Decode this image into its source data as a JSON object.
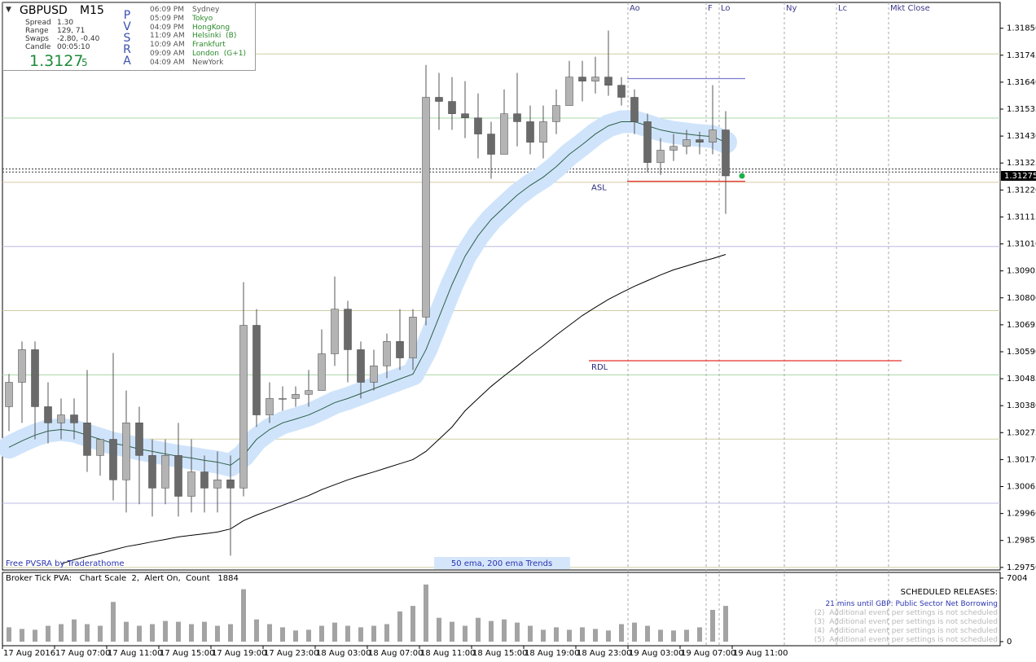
{
  "chart_data": [
    {
      "type": "candlestick",
      "categories": [
        "17 Aug 2016",
        null,
        null,
        null,
        "17 Aug 07:00",
        null,
        null,
        null,
        "17 Aug 11:00",
        null,
        null,
        null,
        "17 Aug 15:00",
        null,
        null,
        null,
        "17 Aug 19:00",
        null,
        null,
        null,
        "17 Aug 23:00",
        null,
        null,
        null,
        "18 Aug 03:00",
        null,
        null,
        null,
        "18 Aug 07:00",
        null,
        null,
        null,
        "18 Aug 11:00",
        null,
        null,
        null,
        "18 Aug 15:00",
        null,
        null,
        null,
        "18 Aug 19:00",
        null,
        null,
        null,
        "18 Aug 23:00",
        null,
        null,
        null,
        "19 Aug 03:00",
        null,
        null,
        null,
        "19 Aug 07:00",
        null,
        null,
        null,
        "19 Aug 11:00"
      ],
      "open": [
        1.30376,
        1.30471,
        1.30598,
        1.30376,
        1.30313,
        1.30344,
        1.30313,
        1.30186,
        1.30249,
        1.30091,
        1.30313,
        1.30186,
        1.30059,
        1.30186,
        1.30027,
        1.30122,
        1.30059,
        1.30091,
        1.30059,
        1.30693,
        1.30344,
        1.30408,
        1.30408,
        1.30424,
        1.30439,
        1.30582,
        1.30756,
        1.30598,
        1.30471,
        1.30535,
        1.3063,
        1.30566,
        1.30725,
        1.31581,
        1.31565,
        1.31517,
        1.31501,
        1.31438,
        1.31359,
        1.31517,
        1.31486,
        1.31406,
        1.31486,
        1.31549,
        1.3166,
        1.31644,
        1.3166,
        1.31628,
        1.31581,
        1.31486,
        1.31327,
        1.31375,
        1.3139,
        1.31416,
        1.31406,
        1.31454,
        null
      ],
      "high": [
        1.30503,
        1.3063,
        1.3063,
        1.30471,
        1.30408,
        1.30408,
        1.30519,
        1.30249,
        1.30585,
        1.30439,
        1.30376,
        1.30249,
        1.30249,
        1.30313,
        1.30249,
        1.30186,
        1.30202,
        1.30186,
        1.30861,
        1.30756,
        1.30471,
        1.30455,
        1.30455,
        1.30519,
        1.30677,
        1.30883,
        1.30788,
        1.3063,
        1.30598,
        1.30661,
        1.30756,
        1.30756,
        1.31707,
        1.31676,
        1.3166,
        1.31644,
        1.31596,
        1.31486,
        1.31612,
        1.31676,
        1.31549,
        1.31549,
        1.31612,
        1.31723,
        1.31723,
        1.31739,
        1.31841,
        1.3166,
        1.31612,
        1.31517,
        1.31422,
        1.31438,
        1.31454,
        1.31447,
        1.31628,
        1.31527,
        null
      ],
      "low": [
        1.30281,
        1.30313,
        1.30249,
        1.30233,
        1.30249,
        1.30249,
        1.30122,
        1.30107,
        1.30011,
        1.29964,
        1.29996,
        1.29948,
        1.29996,
        1.29948,
        1.29964,
        1.29964,
        1.29964,
        1.29796,
        1.30027,
        1.30297,
        1.30313,
        1.3036,
        1.30376,
        1.30376,
        1.30439,
        1.30535,
        1.30471,
        1.30408,
        1.30439,
        1.30487,
        1.30519,
        1.30519,
        1.30693,
        1.31454,
        1.31454,
        1.31422,
        1.31343,
        1.31264,
        1.31359,
        1.3139,
        1.31359,
        1.31343,
        1.31438,
        1.31549,
        1.31565,
        1.31596,
        1.31587,
        1.31549,
        1.31438,
        1.31289,
        1.31279,
        1.31333,
        1.31359,
        1.31359,
        1.31359,
        1.31127,
        null
      ],
      "close": [
        1.30471,
        1.30598,
        1.30376,
        1.30313,
        1.30344,
        1.30313,
        1.30186,
        1.30249,
        1.30091,
        1.30313,
        1.30186,
        1.30059,
        1.30186,
        1.30027,
        1.30122,
        1.30059,
        1.30091,
        1.30059,
        1.30693,
        1.30344,
        1.30408,
        1.30408,
        1.30424,
        1.30439,
        1.30582,
        1.30756,
        1.30598,
        1.30471,
        1.30535,
        1.3063,
        1.30566,
        1.30725,
        1.31581,
        1.31565,
        1.31517,
        1.31501,
        1.31438,
        1.31359,
        1.31517,
        1.31486,
        1.31406,
        1.31486,
        1.31549,
        1.3166,
        1.31644,
        1.3166,
        1.31628,
        1.31581,
        1.31486,
        1.31327,
        1.31375,
        1.3139,
        1.31416,
        1.31406,
        1.31454,
        1.31275,
        null
      ],
      "up_color": "#b4b4b4",
      "down_color": "#6a6a6a",
      "wick_color": "#555555",
      "overlays": [
        {
          "color": "#2f5f47",
          "band_color": "#cfe4fb",
          "values": [
            1.30218,
            1.30243,
            1.30265,
            1.30281,
            1.30287,
            1.30281,
            1.30265,
            1.30249,
            1.30233,
            1.30224,
            1.30211,
            1.30202,
            1.30192,
            1.30183,
            1.30176,
            1.30167,
            1.3016,
            1.30148,
            1.30186,
            1.30249,
            1.30287,
            1.30313,
            1.30328,
            1.30344,
            1.30367,
            1.30392,
            1.30408,
            1.30427,
            1.30446,
            1.30465,
            1.30484,
            1.30503,
            1.30598,
            1.30725,
            1.30852,
            1.30962,
            1.31042,
            1.31105,
            1.31153,
            1.312,
            1.31238,
            1.3127,
            1.31311,
            1.31359,
            1.31397,
            1.31438,
            1.3147,
            1.31486,
            1.31486,
            1.3147,
            1.31454,
            1.31444,
            1.31438,
            1.31432,
            1.31428,
            1.31406,
            null
          ]
        },
        {
          "color": "#000000",
          "values": [
            null,
            null,
            null,
            null,
            1.29764,
            1.2978,
            1.29793,
            1.29805,
            1.29818,
            1.29831,
            1.2984,
            1.2985,
            1.29859,
            1.29869,
            1.29875,
            1.29881,
            1.29888,
            1.299,
            1.29932,
            1.29954,
            1.29973,
            1.29992,
            1.30011,
            1.3003,
            1.30053,
            1.30072,
            1.30091,
            1.30107,
            1.30122,
            1.30138,
            1.30154,
            1.3017,
            1.30202,
            1.30249,
            1.30297,
            1.3036,
            1.30408,
            1.30455,
            1.30496,
            1.30535,
            1.30576,
            1.30614,
            1.30655,
            1.30693,
            1.30731,
            1.30763,
            1.30794,
            1.3082,
            1.30845,
            1.30867,
            1.30889,
            1.30909,
            1.30924,
            1.3094,
            1.30953,
            1.30969,
            null
          ]
        }
      ],
      "ylim": [
        1.2974,
        1.3196
      ],
      "yticks": [
        {
          "value": 1.2975,
          "label": "1.29750"
        },
        {
          "value": 1.29855,
          "label": "1.29855"
        },
        {
          "value": 1.2996,
          "label": "1.29960"
        },
        {
          "value": 1.30065,
          "label": "1.30065"
        },
        {
          "value": 1.3017,
          "label": "1.30170"
        },
        {
          "value": 1.30275,
          "label": "1.30275"
        },
        {
          "value": 1.3038,
          "label": "1.30380"
        },
        {
          "value": 1.30485,
          "label": "1.30485"
        },
        {
          "value": 1.3059,
          "label": "1.30590"
        },
        {
          "value": 1.30695,
          "label": "1.30695"
        },
        {
          "value": 1.308,
          "label": "1.30800"
        },
        {
          "value": 1.30905,
          "label": "1.30905"
        },
        {
          "value": 1.3101,
          "label": "1.31010"
        },
        {
          "value": 1.31115,
          "label": "1.31115"
        },
        {
          "value": 1.3122,
          "label": "1.31220"
        },
        {
          "value": 1.31325,
          "label": "1.31325"
        },
        {
          "value": 1.3143,
          "label": "1.31430"
        },
        {
          "value": 1.31535,
          "label": "1.31535"
        },
        {
          "value": 1.3164,
          "label": "1.31640"
        },
        {
          "value": 1.31745,
          "label": "1.31745"
        },
        {
          "value": 1.3185,
          "label": "1.31850"
        }
      ],
      "reference_lines": [
        {
          "value": 1.3175,
          "color": "#cdcda4"
        },
        {
          "value": 1.315,
          "color": "#a8d8a8"
        },
        {
          "value": 1.3125,
          "color": "#d9c9a6"
        },
        {
          "value": 1.31,
          "color": "#bcbce6"
        },
        {
          "value": 1.3075,
          "color": "#cdcda4"
        },
        {
          "value": 1.305,
          "color": "#a8d8a8"
        },
        {
          "value": 1.3025,
          "color": "#cdcda4"
        },
        {
          "value": 1.3,
          "color": "#bcbce6"
        },
        {
          "value": 1.2975,
          "color": "#cdcda4"
        },
        {
          "value": 1.3129,
          "color": "#333333",
          "dashed": true
        },
        {
          "value": 1.31302,
          "color": "#333333",
          "dashed": true
        }
      ],
      "key_levels": [
        {
          "label": "ASL",
          "value": 1.31254,
          "color": "#e8322f"
        },
        {
          "label": "RDL",
          "value": 1.30555,
          "color": "#e8322f"
        },
        {
          "value": 1.31654,
          "color": "#7c7cd0"
        }
      ],
      "session_markers": [
        "Ao",
        "F",
        "Lo",
        "Ny",
        "Lc",
        "Mkt Close"
      ],
      "notes": [
        "Free PVSRA by Traderathome",
        "50 ema, 200 ema Trends"
      ]
    },
    {
      "type": "bar",
      "title": "Broker Tick PVA:   Chart Scale  2,  Alert On,  Count   1884",
      "color": "#a3a3a3",
      "values": [
        1580,
        1400,
        1310,
        1750,
        1930,
        2450,
        1930,
        1750,
        4380,
        2190,
        1750,
        1930,
        2280,
        2190,
        1930,
        2190,
        1750,
        1930,
        5780,
        2450,
        1930,
        1580,
        1230,
        1310,
        1750,
        2100,
        1750,
        1580,
        1750,
        1930,
        3330,
        3940,
        6300,
        2630,
        2190,
        1750,
        2630,
        2280,
        2450,
        2100,
        1750,
        1310,
        1580,
        1310,
        1580,
        1400,
        1230,
        1930,
        2100,
        1750,
        1310,
        1230,
        1310,
        1580,
        3500,
        3940,
        null
      ],
      "ylim": [
        0,
        7004
      ],
      "yticks": [
        0,
        7004
      ]
    }
  ],
  "info_panel": {
    "symbol": "GBPUSD",
    "timeframe": "M15",
    "stats": [
      {
        "label": "Spread",
        "value": "1.30"
      },
      {
        "label": "Range",
        "value": "129, 71"
      },
      {
        "label": "Swaps",
        "value": "-2.80, -0.40"
      },
      {
        "label": "Candle",
        "value": "00:05:10"
      }
    ],
    "price": "1.3127",
    "price_tail": "5",
    "indicator": "PVSRA",
    "sessions": [
      {
        "time": "06:09 PM",
        "name": "Sydney",
        "color": "#555555"
      },
      {
        "time": "05:09 PM",
        "name": "Tokyo",
        "color": "#2a8a2a"
      },
      {
        "time": "04:09 PM",
        "name": "HongKong",
        "color": "#2a8a2a"
      },
      {
        "time": "11:09 AM",
        "name": "Helsinki  (B)",
        "color": "#2a8a2a"
      },
      {
        "time": "10:09 AM",
        "name": "Frankfurt",
        "color": "#2a8a2a"
      },
      {
        "time": "09:09 AM",
        "name": "London  (G+1)",
        "color": "#2a8a2a"
      },
      {
        "time": "04:09 AM",
        "name": "NewYork",
        "color": "#555555"
      }
    ]
  },
  "releases": {
    "title": "SCHEDULED RELEASES:",
    "next": "21 mins until GBP: Public Sector Net Borrowing",
    "pending": [
      "(2)  Additional event per settings is not scheduled",
      "(3)  Additional event per settings is not scheduled",
      "(4)  Additional event per settings is not scheduled",
      "(5)  Additional event per settings is not scheduled"
    ]
  }
}
